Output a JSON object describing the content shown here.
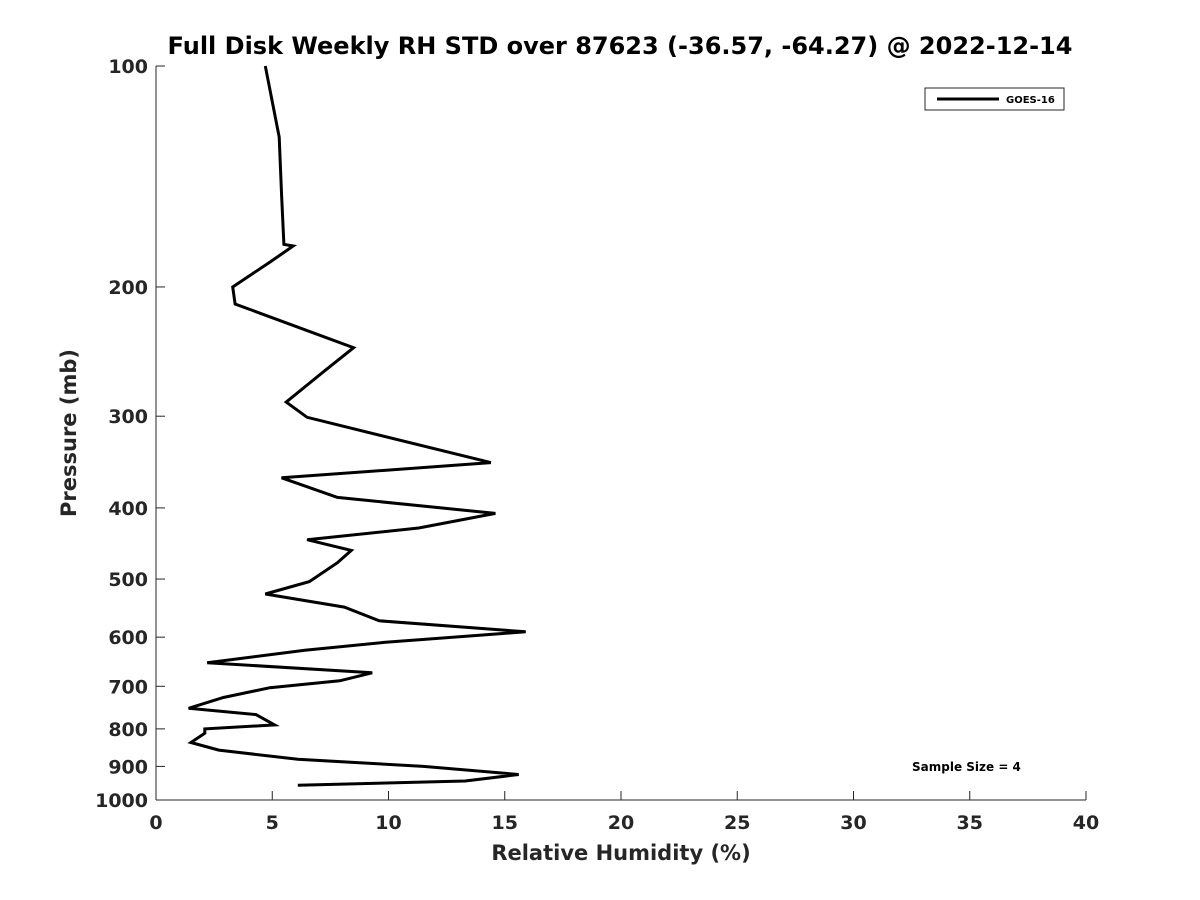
{
  "chart_data": {
    "type": "line",
    "title": "Full Disk Weekly RH STD over 87623 (-36.57, -64.27) @ 2022-12-14",
    "xlabel": "Relative Humidity (%)",
    "ylabel": "Pressure (mb)",
    "xlim": [
      0,
      40
    ],
    "ylim": [
      100,
      1000
    ],
    "y_scale": "log",
    "y_reversed": true,
    "x_ticks": [
      "0",
      "5",
      "10",
      "15",
      "20",
      "25",
      "30",
      "35",
      "40"
    ],
    "y_ticks": [
      "100",
      "200",
      "300",
      "400",
      "500",
      "600",
      "700",
      "800",
      "900",
      "1000"
    ],
    "grid": false,
    "legend_position": "top-right",
    "series": [
      {
        "name": "GOES-16",
        "color": "#000000",
        "x": [
          4.7,
          5.3,
          5.4,
          5.5,
          5.9,
          4.9,
          3.3,
          3.4,
          8.5,
          7.2,
          5.6,
          6.5,
          14.4,
          5.4,
          7.8,
          14.6,
          11.3,
          6.5,
          8.4,
          7.8,
          6.6,
          4.7,
          8.1,
          9.6,
          15.9,
          9.8,
          6.4,
          2.2,
          9.3,
          7.9,
          4.9,
          2.9,
          1.4,
          4.3,
          5.1,
          2.1,
          2.1,
          1.5,
          2.7,
          6.1,
          11.5,
          15.6,
          13.3,
          6.1
        ],
        "y": [
          100,
          125,
          150,
          175,
          175.9,
          185,
          200,
          211,
          242,
          261,
          287,
          301,
          347,
          364,
          387,
          407,
          426,
          442,
          457,
          475,
          504,
          524,
          546,
          570,
          590,
          610,
          625,
          650,
          671,
          688,
          703,
          725,
          750,
          765,
          790,
          800,
          811,
          835,
          855,
          880,
          900,
          923,
          942,
          955
        ]
      }
    ],
    "annotations": [
      "Sample Size = 4"
    ]
  }
}
